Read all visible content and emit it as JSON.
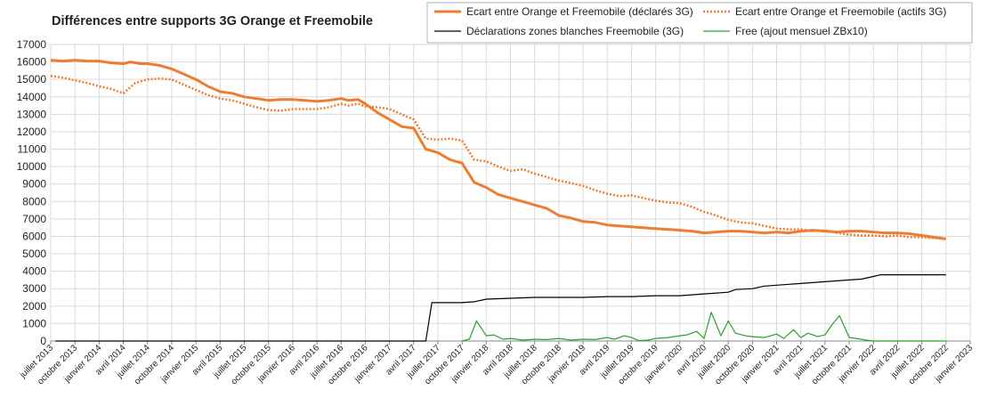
{
  "chart_data": {
    "type": "line",
    "title": "Différences entre supports 3G Orange et Freemobile",
    "ylim": [
      0,
      17000
    ],
    "yticks": [
      0,
      1000,
      2000,
      3000,
      4000,
      5000,
      6000,
      7000,
      8000,
      9000,
      10000,
      11000,
      12000,
      13000,
      14000,
      15000,
      16000,
      17000
    ],
    "ytick_labels": [
      "0",
      "1000",
      "2000",
      "3000",
      "4000",
      "5000",
      "6000",
      "7000",
      "8000",
      "9000",
      "10000",
      "11000",
      "12000",
      "13000",
      "14000",
      "15000",
      "16000",
      "17000"
    ],
    "grid": true,
    "legend_position": "top-right",
    "x_categories": [
      "juillet 2013",
      "octobre 2013",
      "janvier 2014",
      "avril 2014",
      "juillet 2014",
      "octobre 2014",
      "janvier 2015",
      "avril 2015",
      "juillet 2015",
      "octobre 2015",
      "janvier 2016",
      "avril 2016",
      "juillet 2016",
      "octobre 2016",
      "janvier 2017",
      "avril 2017",
      "juillet 2017",
      "octobre 2017",
      "janvier 2018",
      "avril 2018",
      "juillet 2018",
      "octobre 2018",
      "janvier 2019",
      "avril 2019",
      "juillet 2019",
      "octobre 2019",
      "janvier 2020",
      "avril 2020",
      "juillet 2020",
      "octobre 2020",
      "janvier 2021",
      "avril 2021",
      "juillet 2021",
      "octobre 2021",
      "janvier 2022",
      "avril 2022",
      "juillet 2022",
      "octobre 2022",
      "janvier 2023"
    ],
    "series": [
      {
        "name": "Ecart entre Orange et Freemobile (déclarés 3G)",
        "color": "#ED7D31",
        "style": "solid-thick",
        "points": [
          [
            0,
            16100
          ],
          [
            0.5,
            16050
          ],
          [
            1,
            16100
          ],
          [
            1.5,
            16050
          ],
          [
            2,
            16050
          ],
          [
            2.5,
            15950
          ],
          [
            3,
            15900
          ],
          [
            3.3,
            16000
          ],
          [
            3.7,
            15900
          ],
          [
            4,
            15900
          ],
          [
            4.5,
            15800
          ],
          [
            5,
            15600
          ],
          [
            5.5,
            15300
          ],
          [
            6,
            15000
          ],
          [
            6.5,
            14600
          ],
          [
            7,
            14300
          ],
          [
            7.5,
            14200
          ],
          [
            8,
            14000
          ],
          [
            8.5,
            13900
          ],
          [
            9,
            13800
          ],
          [
            9.5,
            13850
          ],
          [
            10,
            13850
          ],
          [
            10.5,
            13800
          ],
          [
            11,
            13750
          ],
          [
            11.5,
            13800
          ],
          [
            12,
            13900
          ],
          [
            12.3,
            13800
          ],
          [
            12.7,
            13850
          ],
          [
            13,
            13600
          ],
          [
            13.5,
            13100
          ],
          [
            14,
            12700
          ],
          [
            14.5,
            12300
          ],
          [
            15,
            12200
          ],
          [
            15.5,
            11000
          ],
          [
            16,
            10800
          ],
          [
            16.5,
            10400
          ],
          [
            17,
            10200
          ],
          [
            17.5,
            9100
          ],
          [
            18,
            8800
          ],
          [
            18.5,
            8400
          ],
          [
            19,
            8200
          ],
          [
            19.5,
            8000
          ],
          [
            20,
            7800
          ],
          [
            20.5,
            7600
          ],
          [
            21,
            7200
          ],
          [
            21.5,
            7050
          ],
          [
            22,
            6850
          ],
          [
            22.5,
            6800
          ],
          [
            23,
            6650
          ],
          [
            23.5,
            6600
          ],
          [
            24,
            6550
          ],
          [
            24.5,
            6500
          ],
          [
            25,
            6450
          ],
          [
            25.5,
            6400
          ],
          [
            26,
            6350
          ],
          [
            26.5,
            6300
          ],
          [
            27,
            6200
          ],
          [
            27.5,
            6250
          ],
          [
            28,
            6300
          ],
          [
            28.5,
            6300
          ],
          [
            29,
            6250
          ],
          [
            29.5,
            6200
          ],
          [
            30,
            6250
          ],
          [
            30.5,
            6200
          ],
          [
            31,
            6300
          ],
          [
            31.5,
            6350
          ],
          [
            32,
            6300
          ],
          [
            32.5,
            6250
          ],
          [
            33,
            6300
          ],
          [
            33.5,
            6300
          ],
          [
            34,
            6250
          ],
          [
            34.5,
            6200
          ],
          [
            35,
            6200
          ],
          [
            35.5,
            6150
          ],
          [
            36,
            6050
          ],
          [
            36.5,
            5950
          ],
          [
            37,
            5850
          ]
        ]
      },
      {
        "name": "Ecart entre Orange et Freemobile (actifs 3G)",
        "color": "#ED7D31",
        "style": "dotted",
        "points": [
          [
            0,
            15200
          ],
          [
            0.5,
            15100
          ],
          [
            1,
            14950
          ],
          [
            1.5,
            14800
          ],
          [
            2,
            14600
          ],
          [
            2.5,
            14450
          ],
          [
            3,
            14200
          ],
          [
            3.5,
            14800
          ],
          [
            4,
            15000
          ],
          [
            4.5,
            15050
          ],
          [
            5,
            15000
          ],
          [
            5.5,
            14700
          ],
          [
            6,
            14400
          ],
          [
            6.5,
            14100
          ],
          [
            7,
            13900
          ],
          [
            7.5,
            13800
          ],
          [
            8,
            13600
          ],
          [
            8.5,
            13400
          ],
          [
            9,
            13250
          ],
          [
            9.5,
            13200
          ],
          [
            10,
            13300
          ],
          [
            10.5,
            13300
          ],
          [
            11,
            13300
          ],
          [
            11.5,
            13400
          ],
          [
            12,
            13600
          ],
          [
            12.3,
            13500
          ],
          [
            12.7,
            13600
          ],
          [
            13,
            13450
          ],
          [
            13.5,
            13400
          ],
          [
            14,
            13300
          ],
          [
            14.5,
            13000
          ],
          [
            15,
            12700
          ],
          [
            15.5,
            11600
          ],
          [
            16,
            11550
          ],
          [
            16.5,
            11600
          ],
          [
            17,
            11500
          ],
          [
            17.5,
            10400
          ],
          [
            18,
            10300
          ],
          [
            18.5,
            10000
          ],
          [
            19,
            9750
          ],
          [
            19.5,
            9850
          ],
          [
            20,
            9600
          ],
          [
            20.5,
            9400
          ],
          [
            21,
            9200
          ],
          [
            21.5,
            9050
          ],
          [
            22,
            8900
          ],
          [
            22.5,
            8650
          ],
          [
            23,
            8450
          ],
          [
            23.5,
            8300
          ],
          [
            24,
            8350
          ],
          [
            24.5,
            8200
          ],
          [
            25,
            8050
          ],
          [
            25.5,
            7950
          ],
          [
            26,
            7900
          ],
          [
            26.5,
            7700
          ],
          [
            27,
            7400
          ],
          [
            27.5,
            7200
          ],
          [
            28,
            6950
          ],
          [
            28.5,
            6800
          ],
          [
            29,
            6750
          ],
          [
            29.5,
            6600
          ],
          [
            30,
            6450
          ],
          [
            30.5,
            6400
          ],
          [
            31,
            6400
          ],
          [
            31.5,
            6300
          ],
          [
            32,
            6350
          ],
          [
            32.5,
            6200
          ],
          [
            33,
            6100
          ],
          [
            33.5,
            6050
          ],
          [
            34,
            6050
          ],
          [
            34.5,
            6000
          ],
          [
            35,
            6050
          ],
          [
            35.5,
            5950
          ],
          [
            36,
            5950
          ],
          [
            36.5,
            5900
          ],
          [
            37,
            5850
          ]
        ]
      },
      {
        "name": "Déclarations zones blanches Freemobile (3G)",
        "color": "#000000",
        "style": "solid-thin",
        "points": [
          [
            0.2,
            0
          ],
          [
            15.5,
            0
          ],
          [
            15.75,
            2200
          ],
          [
            17,
            2200
          ],
          [
            17.5,
            2250
          ],
          [
            18,
            2400
          ],
          [
            19,
            2450
          ],
          [
            20,
            2500
          ],
          [
            21,
            2500
          ],
          [
            22,
            2500
          ],
          [
            23,
            2550
          ],
          [
            24,
            2550
          ],
          [
            25,
            2600
          ],
          [
            26,
            2600
          ],
          [
            27,
            2700
          ],
          [
            28,
            2800
          ],
          [
            28.3,
            2950
          ],
          [
            29,
            3000
          ],
          [
            29.5,
            3150
          ],
          [
            30,
            3200
          ],
          [
            31,
            3300
          ],
          [
            32,
            3400
          ],
          [
            33,
            3500
          ],
          [
            33.5,
            3550
          ],
          [
            34,
            3700
          ],
          [
            34.3,
            3800
          ],
          [
            35,
            3800
          ],
          [
            37,
            3800
          ]
        ]
      },
      {
        "name": "Free (ajout mensuel ZBx10)",
        "color": "#2CA02C",
        "style": "solid-thin",
        "points": [
          [
            17,
            0
          ],
          [
            17.3,
            100
          ],
          [
            17.6,
            1150
          ],
          [
            18,
            300
          ],
          [
            18.3,
            350
          ],
          [
            18.7,
            100
          ],
          [
            19,
            150
          ],
          [
            19.5,
            50
          ],
          [
            20,
            100
          ],
          [
            20.5,
            80
          ],
          [
            21,
            150
          ],
          [
            21.5,
            50
          ],
          [
            22,
            100
          ],
          [
            22.5,
            80
          ],
          [
            23,
            200
          ],
          [
            23.3,
            100
          ],
          [
            23.7,
            300
          ],
          [
            24,
            200
          ],
          [
            24.3,
            20
          ],
          [
            24.7,
            50
          ],
          [
            25,
            150
          ],
          [
            25.5,
            200
          ],
          [
            26,
            300
          ],
          [
            26.3,
            350
          ],
          [
            26.7,
            550
          ],
          [
            27,
            150
          ],
          [
            27.3,
            1650
          ],
          [
            27.7,
            300
          ],
          [
            28,
            1150
          ],
          [
            28.3,
            450
          ],
          [
            28.7,
            300
          ],
          [
            29,
            250
          ],
          [
            29.5,
            200
          ],
          [
            30,
            400
          ],
          [
            30.3,
            150
          ],
          [
            30.7,
            650
          ],
          [
            31,
            200
          ],
          [
            31.3,
            450
          ],
          [
            31.7,
            250
          ],
          [
            32,
            350
          ],
          [
            32.3,
            950
          ],
          [
            32.6,
            1450
          ],
          [
            33,
            200
          ],
          [
            33.3,
            150
          ],
          [
            33.7,
            50
          ],
          [
            34,
            0
          ],
          [
            37,
            0
          ]
        ]
      }
    ]
  }
}
